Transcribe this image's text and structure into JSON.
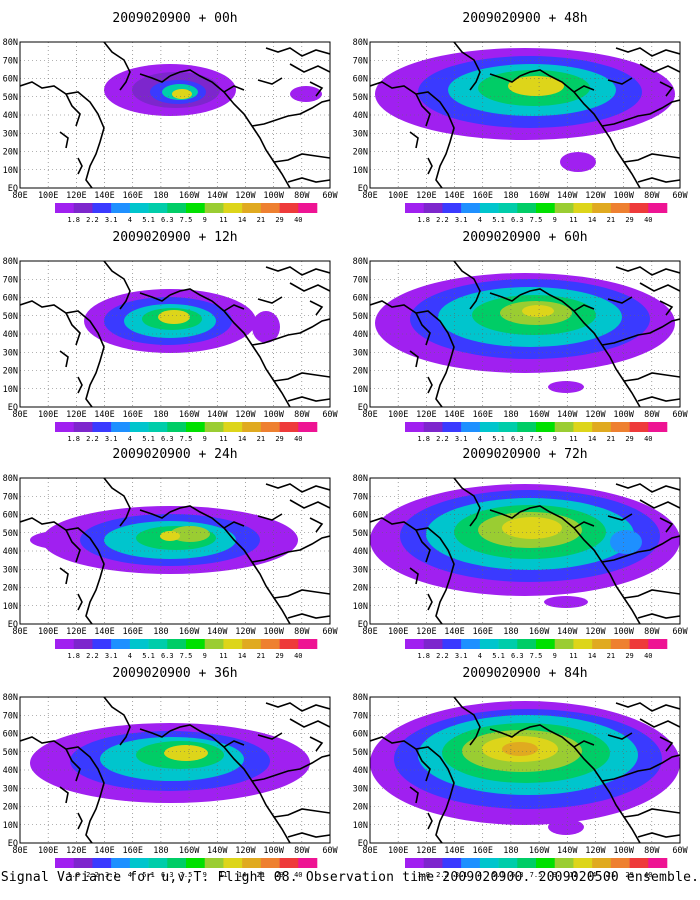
{
  "caption": "Signal Variance for u,v,T. Flight 08. Observation time 2009020900. 2009020500 ensemble.",
  "colorbar": {
    "labels": [
      "1.8",
      "2.2",
      "3.1",
      "4",
      "5.1",
      "6.3",
      "7.5",
      "9",
      "11",
      "14",
      "21",
      "29",
      "40"
    ],
    "colors": [
      "#a020f0",
      "#7d26cd",
      "#3a3aff",
      "#1e90ff",
      "#00c5cd",
      "#00cdaa",
      "#00cd66",
      "#00e000",
      "#9acd32",
      "#ddd51a",
      "#e0aa20",
      "#ee8030",
      "#ee3a3a",
      "#ee1493"
    ]
  },
  "axes": {
    "lon_labels": [
      "80E",
      "100E",
      "120E",
      "140E",
      "160E",
      "180",
      "160W",
      "140W",
      "120W",
      "100W",
      "80W",
      "60W"
    ],
    "lat_labels": [
      "80N",
      "70N",
      "60N",
      "50N",
      "40N",
      "30N",
      "20N",
      "10N",
      "EQ"
    ],
    "grid": true
  },
  "panels": [
    {
      "id": "p00",
      "title": "2009020900 + 00h",
      "hours": 0
    },
    {
      "id": "p12",
      "title": "2009020900 + 12h",
      "hours": 12
    },
    {
      "id": "p24",
      "title": "2009020900 + 24h",
      "hours": 24
    },
    {
      "id": "p36",
      "title": "2009020900 + 36h",
      "hours": 36
    },
    {
      "id": "p48",
      "title": "2009020900 + 48h",
      "hours": 48
    },
    {
      "id": "p60",
      "title": "2009020900 + 60h",
      "hours": 60
    },
    {
      "id": "p72",
      "title": "2009020900 + 72h",
      "hours": 72
    },
    {
      "id": "p84",
      "title": "2009020900 + 84h",
      "hours": 84
    }
  ]
}
